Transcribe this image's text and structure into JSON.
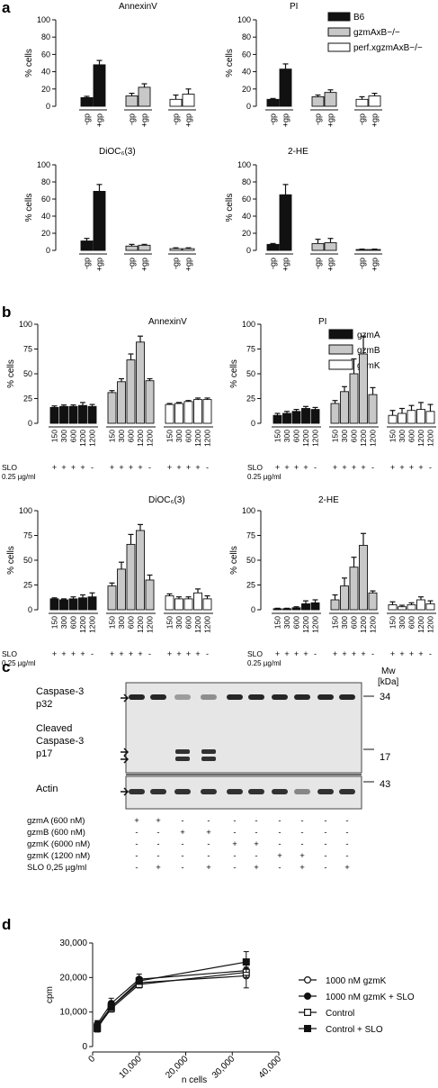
{
  "panel_labels": {
    "a": "a",
    "b": "b",
    "c": "c",
    "d": "d"
  },
  "colors": {
    "black": "#111111",
    "gray": "#c8c8c8",
    "white": "#ffffff",
    "stroke": "#111111"
  },
  "panel_a": {
    "legend": [
      "B6",
      "gzmAxB−/−",
      "perf.xgzmAxB−/−"
    ],
    "ylabel": "% cells",
    "conditions": [
      "-gp",
      "+gp",
      "-gp",
      "+gp",
      "-gp",
      "+gp"
    ]
  },
  "panel_b": {
    "legend": [
      "gzmA",
      "gzmB",
      "gzmK"
    ],
    "ylabel": "% cells",
    "conc_labels": [
      "150",
      "300",
      "600",
      "1200",
      "1200",
      "150",
      "300",
      "600",
      "1200",
      "1200",
      "150",
      "300",
      "600",
      "1200",
      "1200"
    ],
    "slo_label": "SLO",
    "slo_conc": "0.25 µg/ml",
    "slo_signs": [
      "+",
      "+",
      "+",
      "+",
      "-",
      "+",
      "+",
      "+",
      "+",
      "-",
      "+",
      "+",
      "+",
      "+",
      "-"
    ]
  },
  "panel_c": {
    "mw_header_1": "Mw",
    "mw_header_2": "[kDa]",
    "mw_markers": [
      "34",
      "17",
      "43"
    ],
    "band_labels": {
      "caspase_line1": "Caspase-3",
      "caspase_line2": "p32",
      "cleaved_line1": "Cleaved",
      "cleaved_line2": "Caspase-3",
      "cleaved_line3": "p17",
      "actin": "Actin"
    },
    "treatments": [
      {
        "label": "gzmA (600 nM)",
        "signs": [
          "+",
          "+",
          "-",
          "-",
          "-",
          "-",
          "-",
          "-",
          "-",
          "-"
        ]
      },
      {
        "label": "gzmB (600 nM)",
        "signs": [
          "-",
          "-",
          "+",
          "+",
          "-",
          "-",
          "-",
          "-",
          "-",
          "-"
        ]
      },
      {
        "label": "gzmK (6000 nM)",
        "signs": [
          "-",
          "-",
          "-",
          "-",
          "+",
          "+",
          "-",
          "-",
          "-",
          "-"
        ]
      },
      {
        "label": "gzmK (1200 nM)",
        "signs": [
          "-",
          "-",
          "-",
          "-",
          "-",
          "-",
          "+",
          "+",
          "-",
          "-"
        ]
      },
      {
        "label": "SLO 0,25 µg/ml",
        "signs": [
          "-",
          "+",
          "-",
          "+",
          "-",
          "+",
          "-",
          "+",
          "-",
          "+"
        ]
      }
    ]
  },
  "chart_data": [
    {
      "id": "a1",
      "type": "bar",
      "title": "AnnexinV",
      "ylabel": "% cells",
      "ylim": [
        0,
        100
      ],
      "yticks": [
        0,
        20,
        40,
        60,
        80,
        100
      ],
      "categories": [
        "-gp",
        "+gp",
        "-gp",
        "+gp",
        "-gp",
        "+gp"
      ],
      "values": [
        10,
        48,
        12,
        22,
        8,
        14
      ],
      "errors": [
        1.5,
        5,
        3,
        4,
        5,
        6
      ],
      "fills": [
        "black",
        "black",
        "gray",
        "gray",
        "white",
        "white"
      ]
    },
    {
      "id": "a2",
      "type": "bar",
      "title": "PI",
      "ylabel": "% cells",
      "ylim": [
        0,
        100
      ],
      "yticks": [
        0,
        20,
        40,
        60,
        80,
        100
      ],
      "categories": [
        "-gp",
        "+gp",
        "-gp",
        "+gp",
        "-gp",
        "+gp"
      ],
      "values": [
        8,
        43,
        11,
        16,
        8,
        12
      ],
      "errors": [
        1,
        6,
        2,
        3,
        3,
        3
      ],
      "fills": [
        "black",
        "black",
        "gray",
        "gray",
        "white",
        "white"
      ]
    },
    {
      "id": "a3",
      "type": "bar",
      "title": "DiOC₆(3)",
      "ylabel": "% cells",
      "ylim": [
        0,
        100
      ],
      "yticks": [
        0,
        20,
        40,
        60,
        80,
        100
      ],
      "categories": [
        "-gp",
        "+gp",
        "-gp",
        "+gp",
        "-gp",
        "+gp"
      ],
      "values": [
        11,
        69,
        5,
        6,
        2,
        2
      ],
      "errors": [
        3,
        8,
        2,
        1,
        1,
        1
      ],
      "fills": [
        "black",
        "black",
        "gray",
        "gray",
        "white",
        "white"
      ]
    },
    {
      "id": "a4",
      "type": "bar",
      "title": "2-HE",
      "ylabel": "% cells",
      "ylim": [
        0,
        100
      ],
      "yticks": [
        0,
        20,
        40,
        60,
        80,
        100
      ],
      "categories": [
        "-gp",
        "+gp",
        "-gp",
        "+gp",
        "-gp",
        "+gp"
      ],
      "values": [
        7,
        65,
        8,
        9,
        1,
        1
      ],
      "errors": [
        1,
        12,
        5,
        5,
        0.5,
        0.5
      ],
      "fills": [
        "black",
        "black",
        "gray",
        "gray",
        "white",
        "white"
      ]
    },
    {
      "id": "b1",
      "type": "bar",
      "title": "AnnexinV",
      "ylabel": "% cells",
      "ylim": [
        0,
        100
      ],
      "yticks": [
        0,
        25,
        50,
        75,
        100
      ],
      "categories": [
        "150",
        "300",
        "600",
        "1200",
        "1200",
        "150",
        "300",
        "600",
        "1200",
        "1200",
        "150",
        "300",
        "600",
        "1200",
        "1200"
      ],
      "values": [
        16,
        17,
        17,
        18,
        17,
        31,
        42,
        64,
        82,
        43,
        19,
        20,
        22,
        24,
        24
      ],
      "errors": [
        1.5,
        1.5,
        1.5,
        3,
        2,
        2,
        3,
        6,
        6,
        2,
        1,
        1,
        1,
        1.5,
        1.5
      ],
      "fills": [
        "black",
        "black",
        "black",
        "black",
        "black",
        "gray",
        "gray",
        "gray",
        "gray",
        "gray",
        "white",
        "white",
        "white",
        "white",
        "white"
      ]
    },
    {
      "id": "b2",
      "type": "bar",
      "title": "PI",
      "ylabel": "% cells",
      "ylim": [
        0,
        100
      ],
      "yticks": [
        0,
        25,
        50,
        75,
        100
      ],
      "categories": [
        "150",
        "300",
        "600",
        "1200",
        "1200",
        "150",
        "300",
        "600",
        "1200",
        "1200",
        "150",
        "300",
        "600",
        "1200",
        "1200"
      ],
      "values": [
        8,
        10,
        12,
        15,
        14,
        20,
        32,
        50,
        70,
        29,
        8,
        10,
        13,
        14,
        12
      ],
      "errors": [
        2,
        2,
        2,
        2,
        2,
        3,
        5,
        15,
        18,
        7,
        5,
        5,
        5,
        7,
        7
      ],
      "fills": [
        "black",
        "black",
        "black",
        "black",
        "black",
        "gray",
        "gray",
        "gray",
        "gray",
        "gray",
        "white",
        "white",
        "white",
        "white",
        "white"
      ]
    },
    {
      "id": "b3",
      "type": "bar",
      "title": "DiOC₆(3)",
      "ylabel": "% cells",
      "ylim": [
        0,
        100
      ],
      "yticks": [
        0,
        25,
        50,
        75,
        100
      ],
      "categories": [
        "150",
        "300",
        "600",
        "1200",
        "1200",
        "150",
        "300",
        "600",
        "1200",
        "1200",
        "150",
        "300",
        "600",
        "1200",
        "1200"
      ],
      "values": [
        11,
        10,
        11,
        12,
        13,
        24,
        41,
        66,
        80,
        30,
        14,
        11,
        11,
        17,
        11
      ],
      "errors": [
        1,
        1,
        2,
        3,
        4,
        3,
        7,
        10,
        6,
        5,
        2,
        2,
        2,
        4,
        3
      ],
      "fills": [
        "black",
        "black",
        "black",
        "black",
        "black",
        "gray",
        "gray",
        "gray",
        "gray",
        "gray",
        "white",
        "white",
        "white",
        "white",
        "white"
      ]
    },
    {
      "id": "b4",
      "type": "bar",
      "title": "2-HE",
      "ylabel": "% cells",
      "ylim": [
        0,
        100
      ],
      "yticks": [
        0,
        25,
        50,
        75,
        100
      ],
      "categories": [
        "150",
        "300",
        "600",
        "1200",
        "1200",
        "150",
        "300",
        "600",
        "1200",
        "1200",
        "150",
        "300",
        "600",
        "1200",
        "1200"
      ],
      "values": [
        1,
        1,
        2,
        6,
        7,
        10,
        24,
        43,
        65,
        17,
        5,
        3,
        5,
        10,
        6
      ],
      "errors": [
        0.5,
        0.5,
        1,
        3,
        3,
        5,
        8,
        10,
        12,
        2,
        3,
        1.5,
        2,
        3,
        3
      ],
      "fills": [
        "black",
        "black",
        "black",
        "black",
        "black",
        "gray",
        "gray",
        "gray",
        "gray",
        "gray",
        "white",
        "white",
        "white",
        "white",
        "white"
      ]
    },
    {
      "id": "d",
      "type": "line",
      "xlabel": "n cells",
      "ylabel": "cpm",
      "xlim": [
        0,
        40000
      ],
      "ylim": [
        0,
        30000
      ],
      "xtick_labels": [
        "0",
        "10,000",
        "20,000",
        "30,000",
        "40,000"
      ],
      "xticks": [
        0,
        10000,
        20000,
        30000,
        40000
      ],
      "ytick_labels": [
        "0",
        "10,000",
        "20,000",
        "30,000"
      ],
      "yticks": [
        0,
        10000,
        20000,
        30000
      ],
      "x": [
        1000,
        4000,
        10000,
        33000
      ],
      "series": [
        {
          "name": "1000 nM gzmK",
          "marker": "open-circle",
          "values": [
            6000,
            11500,
            18500,
            20500
          ],
          "errors": [
            1500,
            1500,
            1500,
            3500
          ]
        },
        {
          "name": "1000 nM gzmK + SLO",
          "marker": "filled-circle",
          "values": [
            6500,
            12500,
            19500,
            22000
          ],
          "errors": [
            1000,
            1500,
            1500,
            2000
          ]
        },
        {
          "name": "Control",
          "marker": "open-square",
          "values": [
            5500,
            11000,
            18000,
            21500
          ],
          "errors": [
            1000,
            1000,
            1000,
            1500
          ]
        },
        {
          "name": "Control + SLO",
          "marker": "filled-square",
          "values": [
            5200,
            11500,
            19000,
            24500
          ],
          "errors": [
            1000,
            1000,
            1000,
            3000
          ]
        }
      ]
    }
  ]
}
